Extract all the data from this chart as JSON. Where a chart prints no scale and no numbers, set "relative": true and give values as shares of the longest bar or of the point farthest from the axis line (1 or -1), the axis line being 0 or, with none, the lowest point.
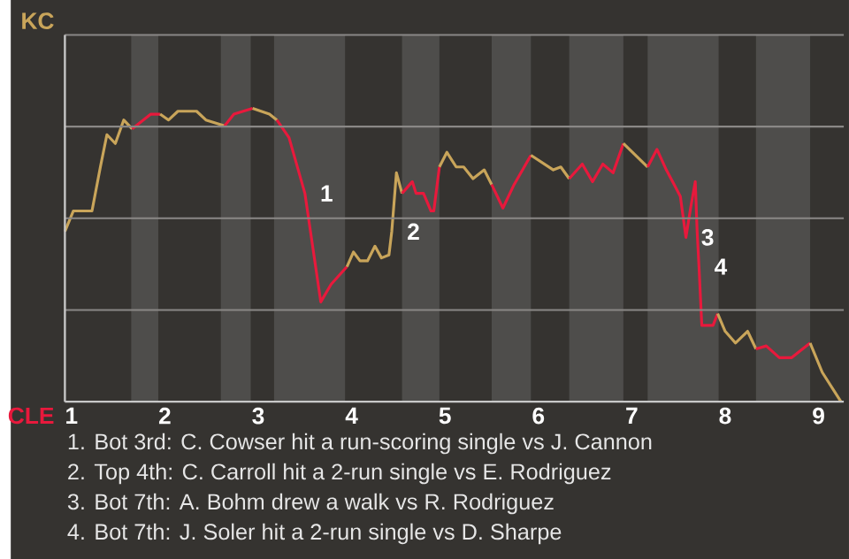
{
  "chart_data": {
    "type": "line",
    "relative": true,
    "xlim": [
      0.93,
      9.27
    ],
    "xticks": [
      1,
      2,
      3,
      4,
      5,
      6,
      7,
      8,
      9
    ],
    "grid": "y",
    "marker": "none",
    "line_style": "solid",
    "bands": [
      {
        "axis": "x",
        "from": 1.64,
        "to": 1.93,
        "color": "#4e4d4b"
      },
      {
        "axis": "x",
        "from": 2.6,
        "to": 2.92,
        "color": "#4e4d4b"
      },
      {
        "axis": "x",
        "from": 3.17,
        "to": 3.93,
        "color": "#4e4d4b"
      },
      {
        "axis": "x",
        "from": 4.54,
        "to": 4.94,
        "color": "#4e4d4b"
      },
      {
        "axis": "x",
        "from": 5.5,
        "to": 5.92,
        "color": "#4e4d4b"
      },
      {
        "axis": "x",
        "from": 6.33,
        "to": 6.91,
        "color": "#4e4d4b"
      },
      {
        "axis": "x",
        "from": 7.17,
        "to": 7.93,
        "color": "#4e4d4b"
      },
      {
        "axis": "x",
        "from": 8.33,
        "to": 8.91,
        "color": "#4e4d4b"
      }
    ],
    "series": [
      {
        "color": "#c9a55a",
        "x": [
          0.93,
          1.02,
          1.22,
          1.31,
          1.38,
          1.47,
          1.56,
          1.65
        ],
        "values": [
          0.58,
          0.65,
          0.65,
          0.8,
          0.91,
          0.88,
          0.96,
          0.93
        ]
      },
      {
        "color": "#e8193c",
        "x": [
          1.65,
          1.85,
          1.95
        ],
        "values": [
          0.93,
          0.98,
          0.98
        ]
      },
      {
        "color": "#c9a55a",
        "x": [
          1.95,
          2.04,
          2.14,
          2.34,
          2.44,
          2.54,
          2.64
        ],
        "values": [
          0.98,
          0.96,
          0.99,
          0.99,
          0.96,
          0.95,
          0.94
        ]
      },
      {
        "color": "#e8193c",
        "x": [
          2.64,
          2.74,
          2.94
        ],
        "values": [
          0.94,
          0.98,
          1
        ]
      },
      {
        "color": "#c9a55a",
        "x": [
          2.94,
          3.12,
          3.2
        ],
        "values": [
          1,
          0.98,
          0.96
        ]
      },
      {
        "color": "#e8193c",
        "x": [
          3.2,
          3.33,
          3.5,
          3.67,
          3.78,
          3.95
        ],
        "values": [
          0.96,
          0.9,
          0.71,
          0.34,
          0.4,
          0.46
        ]
      },
      {
        "color": "#c9a55a",
        "x": [
          3.95,
          4.02,
          4.09,
          4.17,
          4.25,
          4.32,
          4.4,
          4.43,
          4.48,
          4.54
        ],
        "values": [
          0.46,
          0.51,
          0.48,
          0.48,
          0.53,
          0.49,
          0.5,
          0.58,
          0.78,
          0.71
        ]
      },
      {
        "color": "#e8193c",
        "x": [
          4.54,
          4.65,
          4.69,
          4.77,
          4.85,
          4.88,
          4.94
        ],
        "values": [
          0.71,
          0.75,
          0.71,
          0.71,
          0.65,
          0.65,
          0.8
        ]
      },
      {
        "color": "#c9a55a",
        "x": [
          4.94,
          5.02,
          5.12,
          5.2,
          5.3,
          5.42,
          5.5
        ],
        "values": [
          0.8,
          0.85,
          0.8,
          0.8,
          0.76,
          0.79,
          0.74
        ]
      },
      {
        "color": "#e8193c",
        "x": [
          5.5,
          5.62,
          5.74,
          5.92
        ],
        "values": [
          0.74,
          0.66,
          0.74,
          0.84
        ]
      },
      {
        "color": "#c9a55a",
        "x": [
          5.92,
          6.16,
          6.24,
          6.33
        ],
        "values": [
          0.84,
          0.79,
          0.8,
          0.76
        ]
      },
      {
        "color": "#e8193c",
        "x": [
          6.33,
          6.47,
          6.58,
          6.69,
          6.8,
          6.91
        ],
        "values": [
          0.76,
          0.81,
          0.75,
          0.81,
          0.78,
          0.88
        ]
      },
      {
        "color": "#c9a55a",
        "x": [
          6.91,
          7.17
        ],
        "values": [
          0.88,
          0.8
        ]
      },
      {
        "color": "#e8193c",
        "x": [
          7.17,
          7.27,
          7.37,
          7.52,
          7.58,
          7.63,
          7.68,
          7.7,
          7.72,
          7.75,
          7.87,
          7.92
        ],
        "values": [
          0.8,
          0.86,
          0.79,
          0.7,
          0.56,
          0.66,
          0.75,
          0.58,
          0.46,
          0.26,
          0.26,
          0.3
        ]
      },
      {
        "color": "#c9a55a",
        "x": [
          7.92,
          8,
          8.11,
          8.24,
          8.33
        ],
        "values": [
          0.3,
          0.24,
          0.2,
          0.24,
          0.18
        ]
      },
      {
        "color": "#e8193c",
        "x": [
          8.33,
          8.44,
          8.58,
          8.71,
          8.91
        ],
        "values": [
          0.18,
          0.19,
          0.15,
          0.15,
          0.2
        ]
      },
      {
        "color": "#c9a55a",
        "x": [
          8.91,
          9.04,
          9.24
        ],
        "values": [
          0.2,
          0.1,
          0
        ]
      }
    ],
    "annotations": [
      {
        "text": "1",
        "x": 3.5,
        "y": 0.71
      },
      {
        "text": "2",
        "x": 4.43,
        "y": 0.58
      },
      {
        "text": "3",
        "x": 7.58,
        "y": 0.56
      },
      {
        "text": "4",
        "x": 7.72,
        "y": 0.46
      },
      "KC",
      "CLE",
      "1. Bot 3rd: C. Cowser hit a run-scoring single vs J. Cannon",
      "2. Top 4th: C. Carroll hit a 2-run single vs E. Rodriguez",
      "3. Bot 7th: A. Bohm drew a walk vs R. Rodriguez",
      "4. Bot 7th: J. Soler hit a 2-run single vs D. Sharpe"
    ]
  }
}
